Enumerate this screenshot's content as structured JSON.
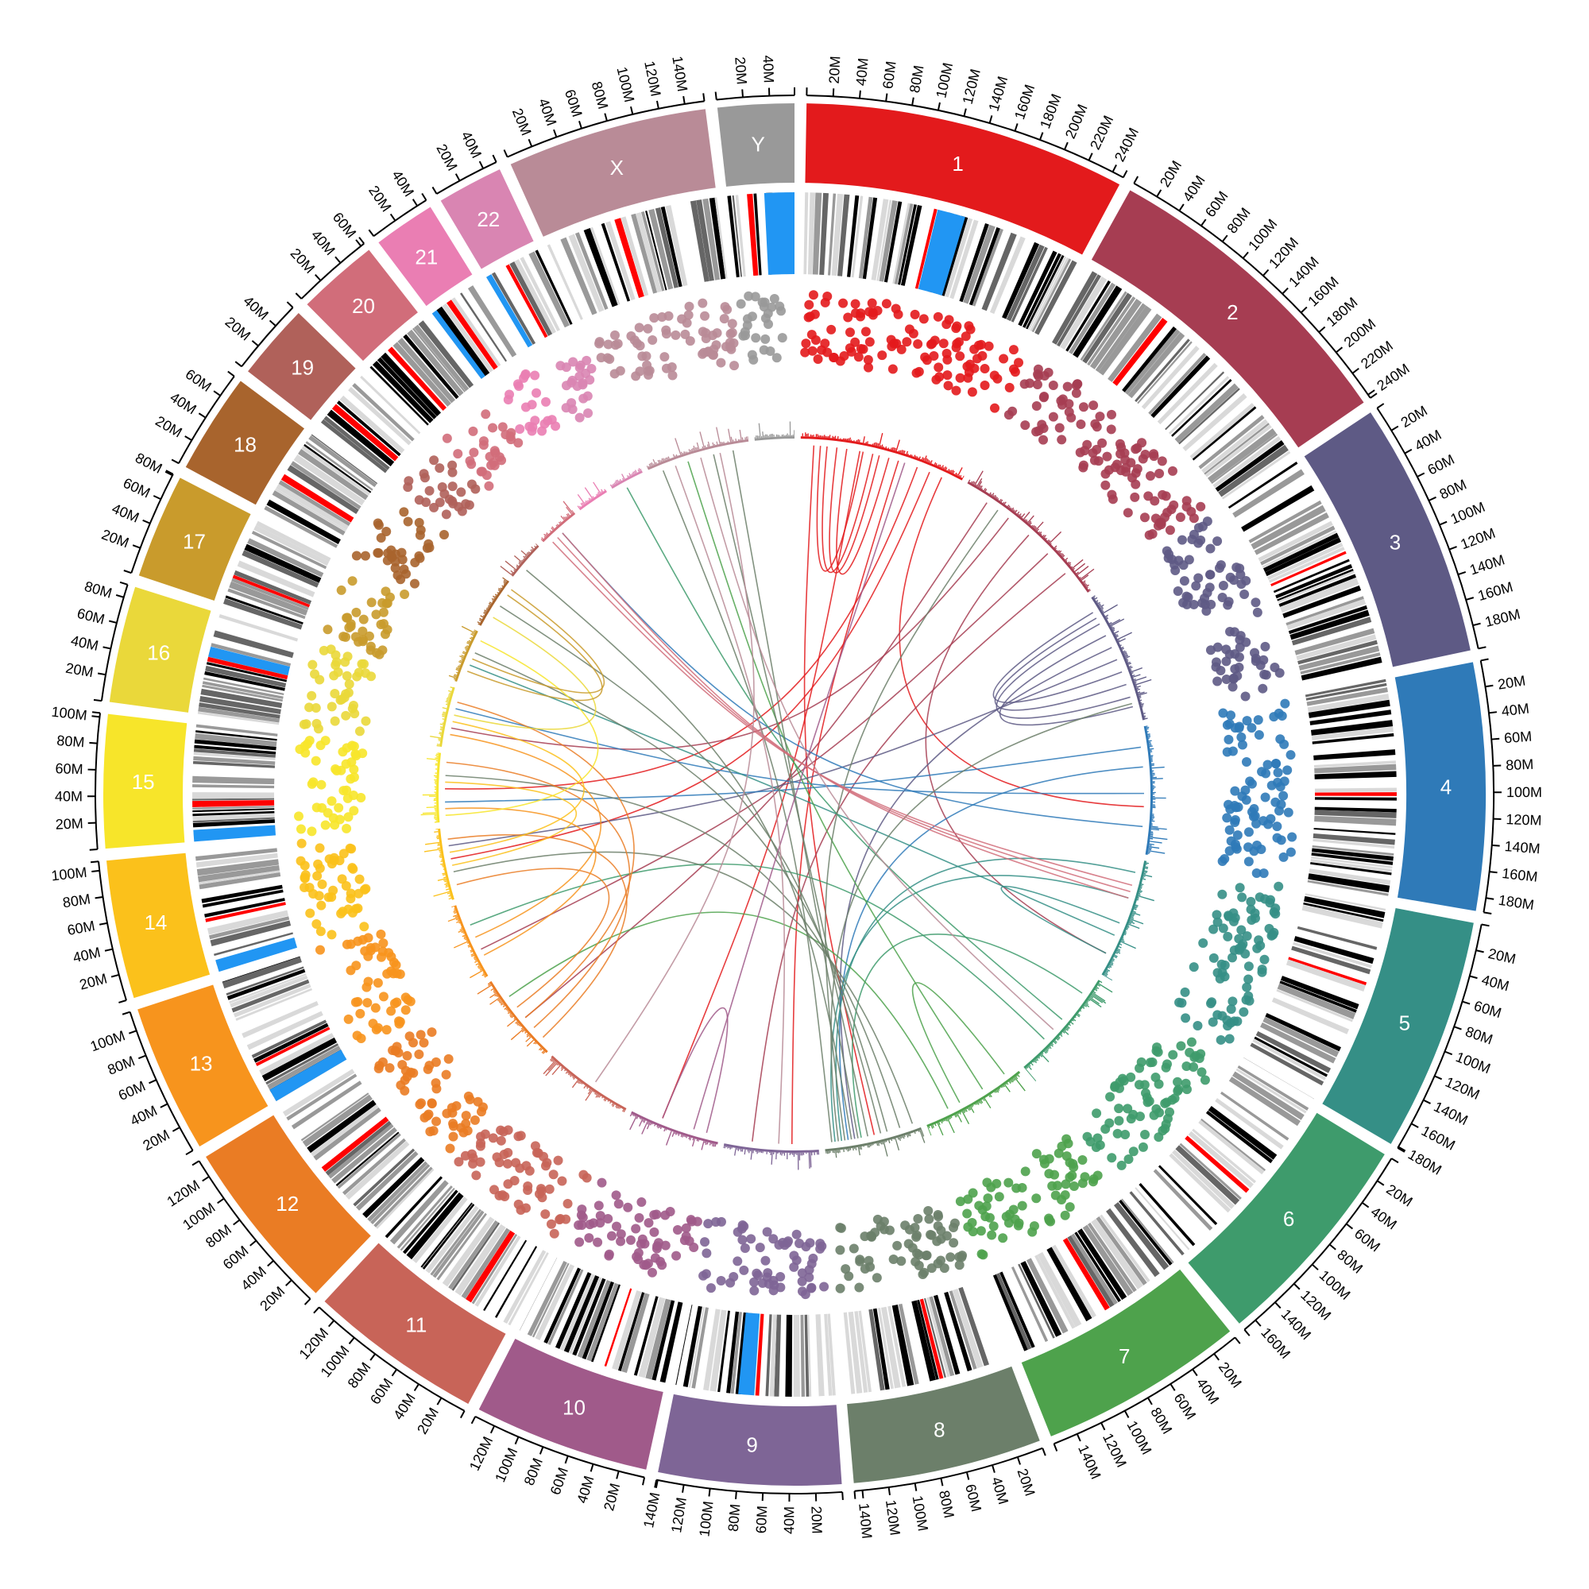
{
  "chart_data": {
    "type": "circos",
    "title": "",
    "center": [
      1000,
      1000
    ],
    "radii": {
      "axis": 880,
      "ideogram_outer": 870,
      "ideogram_inner": 770,
      "cytoband_outer": 758,
      "cytoband_inner": 655,
      "scatter_outer": 630,
      "scatter_inner": 545,
      "histogram_base": 448,
      "histogram_max": 470,
      "link_radius": 440
    },
    "gap_degrees": 1.0,
    "start_angle_degrees": 1.0,
    "tick_step_mb": 20,
    "tick_label_suffix": "M",
    "chromosomes": [
      {
        "name": "1",
        "label": "1",
        "length_mb": 249,
        "color": "#e31a1c"
      },
      {
        "name": "2",
        "label": "2",
        "length_mb": 243,
        "color": "#a63d52"
      },
      {
        "name": "3",
        "label": "3",
        "length_mb": 198,
        "color": "#5e5a85"
      },
      {
        "name": "4",
        "label": "4",
        "length_mb": 191,
        "color": "#2f7ab8"
      },
      {
        "name": "5",
        "label": "5",
        "length_mb": 181,
        "color": "#358f86"
      },
      {
        "name": "6",
        "label": "6",
        "length_mb": 171,
        "color": "#3e9b6c"
      },
      {
        "name": "7",
        "label": "7",
        "length_mb": 159,
        "color": "#4ea24c"
      },
      {
        "name": "8",
        "label": "8",
        "length_mb": 146,
        "color": "#6c7f6a"
      },
      {
        "name": "9",
        "label": "9",
        "length_mb": 141,
        "color": "#7e6596"
      },
      {
        "name": "10",
        "label": "10",
        "length_mb": 136,
        "color": "#a05a8a"
      },
      {
        "name": "11",
        "label": "11",
        "length_mb": 135,
        "color": "#c86458"
      },
      {
        "name": "12",
        "label": "12",
        "length_mb": 134,
        "color": "#ea7c24"
      },
      {
        "name": "13",
        "label": "13",
        "length_mb": 115,
        "color": "#f7941d"
      },
      {
        "name": "14",
        "label": "14",
        "length_mb": 107,
        "color": "#fbc11b"
      },
      {
        "name": "15",
        "label": "15",
        "length_mb": 103,
        "color": "#f7e52a"
      },
      {
        "name": "16",
        "label": "16",
        "length_mb": 90,
        "color": "#ead83a"
      },
      {
        "name": "17",
        "label": "17",
        "length_mb": 81,
        "color": "#c99b2c"
      },
      {
        "name": "18",
        "label": "18",
        "length_mb": 78,
        "color": "#a8642d"
      },
      {
        "name": "19",
        "label": "19",
        "length_mb": 59,
        "color": "#b0615a"
      },
      {
        "name": "20",
        "label": "20",
        "length_mb": 63,
        "color": "#d16d7a"
      },
      {
        "name": "21",
        "label": "21",
        "length_mb": 48,
        "color": "#ea7eb3"
      },
      {
        "name": "22",
        "label": "22",
        "length_mb": 51,
        "color": "#d985b2"
      },
      {
        "name": "X",
        "label": "X",
        "length_mb": 155,
        "color": "#b98b97"
      },
      {
        "name": "Y",
        "label": "Y",
        "length_mb": 59,
        "color": "#999999"
      }
    ],
    "cytoband_colors": {
      "gneg": "#ffffff",
      "gpos25": "#d9d9d9",
      "gpos50": "#999999",
      "gpos75": "#666666",
      "gpos100": "#000000",
      "acen": "#ff0000",
      "gvar": "#2196f3",
      "stalk": "#2196f3"
    },
    "tracks": [
      {
        "name": "ideogram",
        "kind": "chromosome arcs with labels and Mb ticks"
      },
      {
        "name": "cytobands",
        "kind": "band stripes (greyscale, red centromere, blue heterochromatin)"
      },
      {
        "name": "scatter",
        "kind": "points colored by chromosome"
      },
      {
        "name": "histogram",
        "kind": "thin bar histogram colored by chromosome"
      },
      {
        "name": "links",
        "kind": "chords between chromosome positions colored by source chromosome"
      }
    ],
    "links": [
      {
        "from": [
          "1",
          30
        ],
        "to": [
          "1",
          95
        ],
        "color_chr": "1"
      },
      {
        "from": [
          "1",
          40
        ],
        "to": [
          "1",
          110
        ],
        "color_chr": "1"
      },
      {
        "from": [
          "1",
          55
        ],
        "to": [
          "1",
          120
        ],
        "color_chr": "1"
      },
      {
        "from": [
          "1",
          70
        ],
        "to": [
          "1",
          135
        ],
        "color_chr": "1"
      },
      {
        "from": [
          "1",
          20
        ],
        "to": [
          "8",
          70
        ],
        "color_chr": "1"
      },
      {
        "from": [
          "1",
          150
        ],
        "to": [
          "9",
          40
        ],
        "color_chr": "1"
      },
      {
        "from": [
          "1",
          180
        ],
        "to": [
          "15",
          50
        ],
        "color_chr": "1"
      },
      {
        "from": [
          "1",
          200
        ],
        "to": [
          "14",
          60
        ],
        "color_chr": "1"
      },
      {
        "from": [
          "1",
          90
        ],
        "to": [
          "10",
          90
        ],
        "color_chr": "1"
      },
      {
        "from": [
          "1",
          220
        ],
        "to": [
          "4",
          120
        ],
        "color_chr": "1"
      },
      {
        "from": [
          "2",
          40
        ],
        "to": [
          "12",
          60
        ],
        "color_chr": "2"
      },
      {
        "from": [
          "2",
          80
        ],
        "to": [
          "16",
          30
        ],
        "color_chr": "2"
      },
      {
        "from": [
          "2",
          120
        ],
        "to": [
          "5",
          150
        ],
        "color_chr": "2"
      },
      {
        "from": [
          "2",
          160
        ],
        "to": [
          "13",
          40
        ],
        "color_chr": "2"
      },
      {
        "from": [
          "2",
          200
        ],
        "to": [
          "9",
          100
        ],
        "color_chr": "2"
      },
      {
        "from": [
          "3",
          20
        ],
        "to": [
          "3",
          120
        ],
        "color_chr": "3"
      },
      {
        "from": [
          "3",
          30
        ],
        "to": [
          "3",
          140
        ],
        "color_chr": "3"
      },
      {
        "from": [
          "3",
          40
        ],
        "to": [
          "3",
          160
        ],
        "color_chr": "3"
      },
      {
        "from": [
          "3",
          60
        ],
        "to": [
          "3",
          175
        ],
        "color_chr": "3"
      },
      {
        "from": [
          "3",
          80
        ],
        "to": [
          "8",
          100
        ],
        "color_chr": "3"
      },
      {
        "from": [
          "3",
          100
        ],
        "to": [
          "14",
          80
        ],
        "color_chr": "3"
      },
      {
        "from": [
          "4",
          30
        ],
        "to": [
          "15",
          30
        ],
        "color_chr": "4"
      },
      {
        "from": [
          "4",
          60
        ],
        "to": [
          "8",
          110
        ],
        "color_chr": "4"
      },
      {
        "from": [
          "4",
          100
        ],
        "to": [
          "16",
          60
        ],
        "color_chr": "4"
      },
      {
        "from": [
          "4",
          150
        ],
        "to": [
          "20",
          30
        ],
        "color_chr": "4"
      },
      {
        "from": [
          "5",
          20
        ],
        "to": [
          "8",
          120
        ],
        "color_chr": "5"
      },
      {
        "from": [
          "5",
          60
        ],
        "to": [
          "8",
          130
        ],
        "color_chr": "5"
      },
      {
        "from": [
          "5",
          100
        ],
        "to": [
          "5",
          150
        ],
        "color_chr": "5"
      },
      {
        "from": [
          "5",
          120
        ],
        "to": [
          "17",
          30
        ],
        "color_chr": "5"
      },
      {
        "from": [
          "6",
          30
        ],
        "to": [
          "8",
          90
        ],
        "color_chr": "6"
      },
      {
        "from": [
          "6",
          80
        ],
        "to": [
          "22",
          20
        ],
        "color_chr": "6"
      },
      {
        "from": [
          "6",
          120
        ],
        "to": [
          "13",
          80
        ],
        "color_chr": "6"
      },
      {
        "from": [
          "7",
          20
        ],
        "to": [
          "7",
          100
        ],
        "color_chr": "7"
      },
      {
        "from": [
          "7",
          60
        ],
        "to": [
          "X",
          60
        ],
        "color_chr": "7"
      },
      {
        "from": [
          "7",
          120
        ],
        "to": [
          "12",
          100
        ],
        "color_chr": "7"
      },
      {
        "from": [
          "8",
          10
        ],
        "to": [
          "14",
          40
        ],
        "color_chr": "8"
      },
      {
        "from": [
          "8",
          30
        ],
        "to": [
          "15",
          70
        ],
        "color_chr": "8"
      },
      {
        "from": [
          "8",
          50
        ],
        "to": [
          "17",
          50
        ],
        "color_chr": "8"
      },
      {
        "from": [
          "8",
          60
        ],
        "to": [
          "18",
          40
        ],
        "color_chr": "8"
      },
      {
        "from": [
          "8",
          80
        ],
        "to": [
          "X",
          100
        ],
        "color_chr": "8"
      },
      {
        "from": [
          "8",
          95
        ],
        "to": [
          "X",
          130
        ],
        "color_chr": "8"
      },
      {
        "from": [
          "8",
          105
        ],
        "to": [
          "19",
          20
        ],
        "color_chr": "8"
      },
      {
        "from": [
          "8",
          115
        ],
        "to": [
          "2",
          60
        ],
        "color_chr": "8"
      },
      {
        "from": [
          "8",
          125
        ],
        "to": [
          "3",
          170
        ],
        "color_chr": "8"
      },
      {
        "from": [
          "8",
          135
        ],
        "to": [
          "X",
          20
        ],
        "color_chr": "8"
      },
      {
        "from": [
          "10",
          20
        ],
        "to": [
          "10",
          90
        ],
        "color_chr": "10"
      },
      {
        "from": [
          "10",
          40
        ],
        "to": [
          "1",
          160
        ],
        "color_chr": "10"
      },
      {
        "from": [
          "12",
          20
        ],
        "to": [
          "14",
          90
        ],
        "color_chr": "12"
      },
      {
        "from": [
          "12",
          40
        ],
        "to": [
          "15",
          90
        ],
        "color_chr": "12"
      },
      {
        "from": [
          "12",
          60
        ],
        "to": [
          "16",
          70
        ],
        "color_chr": "12"
      },
      {
        "from": [
          "12",
          80
        ],
        "to": [
          "14",
          20
        ],
        "color_chr": "12"
      },
      {
        "from": [
          "13",
          30
        ],
        "to": [
          "15",
          20
        ],
        "color_chr": "13"
      },
      {
        "from": [
          "13",
          60
        ],
        "to": [
          "16",
          20
        ],
        "color_chr": "13"
      },
      {
        "from": [
          "14",
          50
        ],
        "to": [
          "15",
          60
        ],
        "color_chr": "14"
      },
      {
        "from": [
          "14",
          70
        ],
        "to": [
          "16",
          40
        ],
        "color_chr": "14"
      },
      {
        "from": [
          "15",
          10
        ],
        "to": [
          "17",
          70
        ],
        "color_chr": "15"
      },
      {
        "from": [
          "16",
          50
        ],
        "to": [
          "18",
          20
        ],
        "color_chr": "16"
      },
      {
        "from": [
          "17",
          20
        ],
        "to": [
          "18",
          60
        ],
        "color_chr": "17"
      },
      {
        "from": [
          "17",
          40
        ],
        "to": [
          "18",
          70
        ],
        "color_chr": "17"
      },
      {
        "from": [
          "20",
          10
        ],
        "to": [
          "5",
          40
        ],
        "color_chr": "20"
      },
      {
        "from": [
          "20",
          20
        ],
        "to": [
          "5",
          50
        ],
        "color_chr": "20"
      },
      {
        "from": [
          "20",
          30
        ],
        "to": [
          "5",
          60
        ],
        "color_chr": "20"
      },
      {
        "from": [
          "X",
          40
        ],
        "to": [
          "9",
          60
        ],
        "color_chr": "X"
      },
      {
        "from": [
          "X",
          80
        ],
        "to": [
          "6",
          100
        ],
        "color_chr": "X"
      },
      {
        "from": [
          "X",
          110
        ],
        "to": [
          "11",
          60
        ],
        "color_chr": "X"
      }
    ]
  }
}
